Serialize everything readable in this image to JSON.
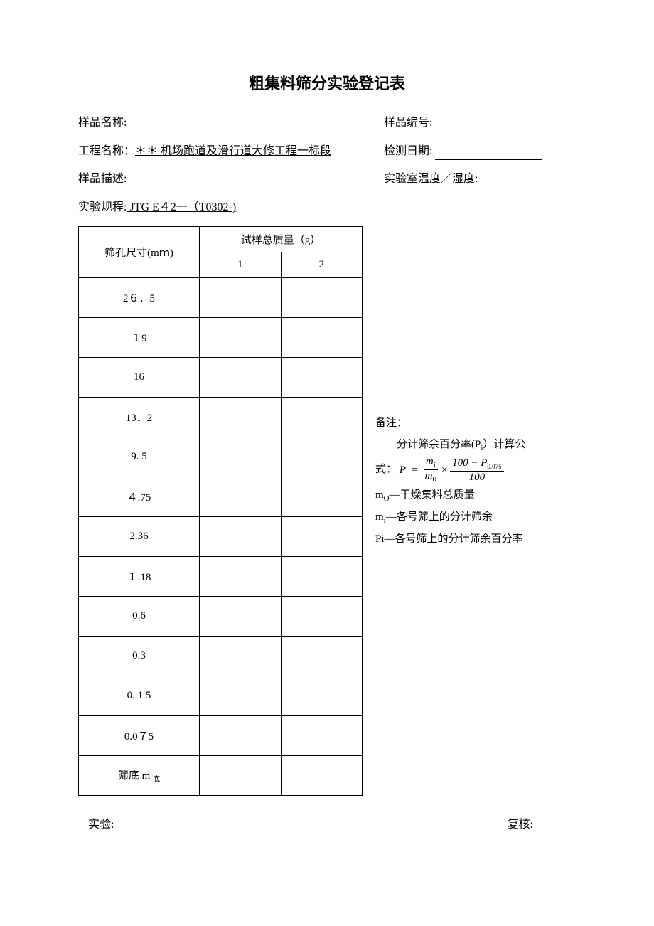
{
  "title": "粗集料筛分实验登记表",
  "meta": {
    "sample_name_label": "样品名称:",
    "sample_no_label": "样品编号:",
    "project_label": "工程名称：",
    "project_value": "＊＊  机场跑道及滑行道大修工程一标段",
    "test_date_label": "检测日期:",
    "sample_desc_label": "样品描述:",
    "temp_label": "实验室温度／湿度:",
    "spec_label": "实验规程:",
    "spec_value": "  JTG E４2一（T0302-)  "
  },
  "table": {
    "header_sieve": "筛孔尺寸(mｍ)",
    "header_mass": "试样总质量（g）",
    "col1": "1",
    "col2": "2",
    "rows": [
      "2６．5",
      "１9",
      "16",
      "13．2",
      "9. 5",
      "４.75",
      "2.36",
      "１.18",
      "0.6",
      "0.3",
      "0. 1  5",
      "0.0７5"
    ],
    "bottom_row": "筛底 m"
  },
  "notes": {
    "header": "备注：",
    "line1_pre": "分计筛余百分率(P",
    "line1_post": "）计算公",
    "line2_pre": "式：",
    "m0_line": "m",
    "m0_text": "—干燥集料总质量",
    "mi_line": "m",
    "mi_text": "—各号筛上的分计筛余",
    "pi_line": "Pi—各号筛上的分计筛余百分率"
  },
  "footer": {
    "left": "实验:",
    "right": "复核:"
  },
  "styles": {
    "bg": "#ffffff",
    "text": "#000000",
    "border": "#000000"
  }
}
